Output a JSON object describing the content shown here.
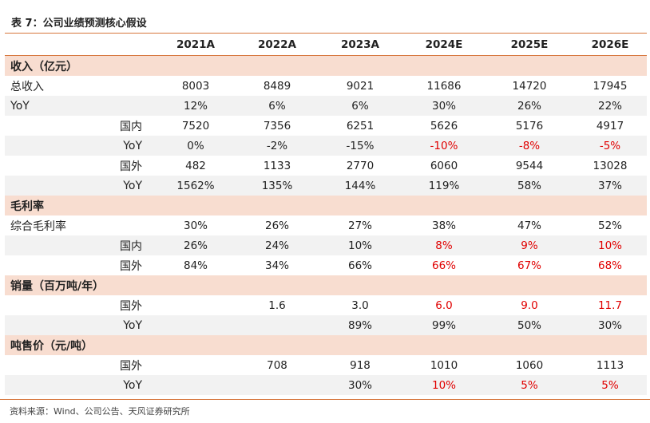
{
  "title": "表 7：公司业绩预测核心假设",
  "columns": [
    "2021A",
    "2022A",
    "2023A",
    "2024E",
    "2025E",
    "2026E"
  ],
  "colors": {
    "accent_line": "#d7763c",
    "section_bg": "#f8ddd0",
    "stripe_bg": "#f2f2f2",
    "forecast_red": "#e00000"
  },
  "rows": [
    {
      "type": "section",
      "label": "收入（亿元）",
      "indent": false,
      "values": [
        "",
        "",
        "",
        "",
        "",
        ""
      ],
      "red": []
    },
    {
      "type": "data",
      "label": "总收入",
      "indent": false,
      "values": [
        "8003",
        "8489",
        "9021",
        "11686",
        "14720",
        "17945"
      ],
      "red": []
    },
    {
      "type": "data",
      "label": "YoY",
      "indent": false,
      "values": [
        "12%",
        "6%",
        "6%",
        "30%",
        "26%",
        "22%"
      ],
      "red": []
    },
    {
      "type": "data",
      "label": "国内",
      "indent": true,
      "values": [
        "7520",
        "7356",
        "6251",
        "5626",
        "5176",
        "4917"
      ],
      "red": []
    },
    {
      "type": "data",
      "label": "YoY",
      "indent": true,
      "values": [
        "0%",
        "-2%",
        "-15%",
        "-10%",
        "-8%",
        "-5%"
      ],
      "red": [
        3,
        4,
        5
      ]
    },
    {
      "type": "data",
      "label": "国外",
      "indent": true,
      "values": [
        "482",
        "1133",
        "2770",
        "6060",
        "9544",
        "13028"
      ],
      "red": []
    },
    {
      "type": "data",
      "label": "YoY",
      "indent": true,
      "values": [
        "1562%",
        "135%",
        "144%",
        "119%",
        "58%",
        "37%"
      ],
      "red": []
    },
    {
      "type": "section",
      "label": "毛利率",
      "indent": false,
      "values": [
        "",
        "",
        "",
        "",
        "",
        ""
      ],
      "red": []
    },
    {
      "type": "data",
      "label": "综合毛利率",
      "indent": false,
      "values": [
        "30%",
        "26%",
        "27%",
        "38%",
        "47%",
        "52%"
      ],
      "red": []
    },
    {
      "type": "data",
      "label": "国内",
      "indent": true,
      "values": [
        "26%",
        "24%",
        "10%",
        "8%",
        "9%",
        "10%"
      ],
      "red": [
        3,
        4,
        5
      ]
    },
    {
      "type": "data",
      "label": "国外",
      "indent": true,
      "values": [
        "84%",
        "34%",
        "66%",
        "66%",
        "67%",
        "68%"
      ],
      "red": [
        3,
        4,
        5
      ]
    },
    {
      "type": "section",
      "label": "销量（百万吨/年）",
      "indent": false,
      "values": [
        "",
        "",
        "",
        "",
        "",
        ""
      ],
      "red": []
    },
    {
      "type": "data",
      "label": "国外",
      "indent": true,
      "values": [
        "",
        "1.6",
        "3.0",
        "6.0",
        "9.0",
        "11.7"
      ],
      "red": [
        3,
        4,
        5
      ]
    },
    {
      "type": "data",
      "label": "YoY",
      "indent": true,
      "values": [
        "",
        "",
        "89%",
        "99%",
        "50%",
        "30%"
      ],
      "red": []
    },
    {
      "type": "section",
      "label": "吨售价（元/吨）",
      "indent": false,
      "values": [
        "",
        "",
        "",
        "",
        "",
        ""
      ],
      "red": []
    },
    {
      "type": "data",
      "label": "国外",
      "indent": true,
      "values": [
        "",
        "708",
        "918",
        "1010",
        "1060",
        "1113"
      ],
      "red": []
    },
    {
      "type": "data",
      "label": "YoY",
      "indent": true,
      "values": [
        "",
        "",
        "30%",
        "10%",
        "5%",
        "5%"
      ],
      "red": [
        3,
        4,
        5
      ]
    }
  ],
  "source": "资料来源：Wind、公司公告、天风证券研究所"
}
